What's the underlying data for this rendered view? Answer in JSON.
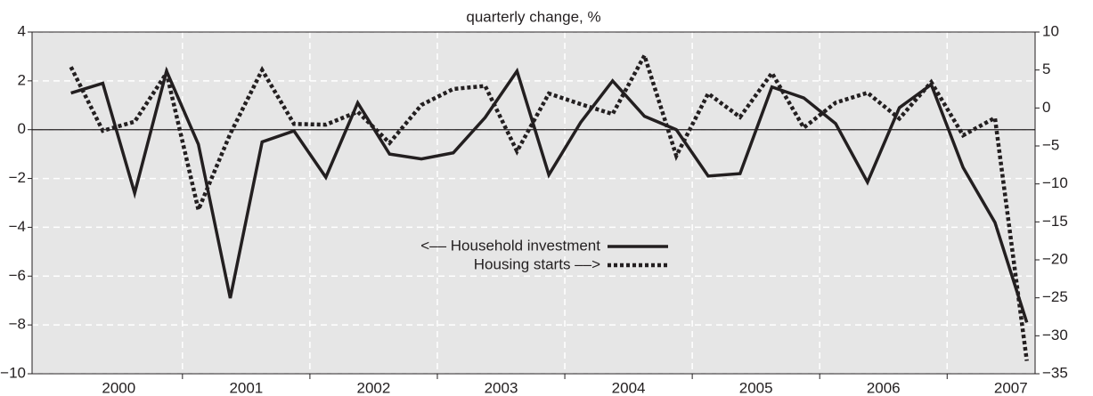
{
  "chart_data": {
    "type": "line",
    "title": "quarterly change, %",
    "x": [
      2000.125,
      2000.375,
      2000.625,
      2000.875,
      2001.125,
      2001.375,
      2001.625,
      2001.875,
      2002.125,
      2002.375,
      2002.625,
      2002.875,
      2003.125,
      2003.375,
      2003.625,
      2003.875,
      2004.125,
      2004.375,
      2004.625,
      2004.875,
      2005.125,
      2005.375,
      2005.625,
      2005.875,
      2006.125,
      2006.375,
      2006.625,
      2006.875,
      2007.125,
      2007.375,
      2007.625
    ],
    "series": [
      {
        "name": "<–– Household investment",
        "color": "#231f20",
        "style": "solid",
        "axis": "y",
        "values": [
          1.5,
          1.9,
          -2.6,
          2.4,
          -0.6,
          -6.9,
          -0.5,
          -0.05,
          -1.95,
          1.1,
          -1.0,
          -1.2,
          -0.95,
          0.5,
          2.4,
          -1.85,
          0.3,
          2.0,
          0.55,
          0.0,
          -1.9,
          -1.8,
          1.75,
          1.3,
          0.25,
          -2.15,
          0.9,
          1.85,
          -1.55,
          -3.8,
          -7.9
        ]
      },
      {
        "name": "Housing starts ––>",
        "color": "#231f20",
        "style": "dotted",
        "axis": "y2",
        "values": [
          5.4,
          -3.0,
          -1.8,
          4.6,
          -13.4,
          -3.4,
          5.0,
          -2.1,
          -2.2,
          -0.5,
          -4.6,
          0.4,
          2.5,
          2.9,
          -5.7,
          1.9,
          0.5,
          -0.8,
          6.9,
          -6.3,
          1.9,
          -1.2,
          4.6,
          -2.6,
          0.7,
          2.0,
          -1.4,
          3.4,
          -3.6,
          -1.3,
          -33.3
        ]
      }
    ],
    "xlim": [
      1999.82,
      2007.69
    ],
    "xticks": [
      {
        "value": 2000.5,
        "label": "2000"
      },
      {
        "value": 2001.5,
        "label": "2001"
      },
      {
        "value": 2002.5,
        "label": "2002"
      },
      {
        "value": 2003.5,
        "label": "2003"
      },
      {
        "value": 2004.5,
        "label": "2004"
      },
      {
        "value": 2005.5,
        "label": "2005"
      },
      {
        "value": 2006.5,
        "label": "2006"
      },
      {
        "value": 2007.5,
        "label": "2007"
      }
    ],
    "xgrid": [
      2001,
      2002,
      2003,
      2004,
      2005,
      2006,
      2007
    ],
    "ylim": [
      -10,
      4
    ],
    "yticks": [
      {
        "value": -10,
        "label": "−10"
      },
      {
        "value": -8,
        "label": "−8"
      },
      {
        "value": -6,
        "label": "−6"
      },
      {
        "value": -4,
        "label": "−4"
      },
      {
        "value": -2,
        "label": "−2"
      },
      0,
      2,
      4
    ],
    "y2lim": [
      -35,
      10
    ],
    "y2ticks": [
      {
        "value": -35,
        "label": "−35"
      },
      {
        "value": -30,
        "label": "−30"
      },
      {
        "value": -25,
        "label": "−25"
      },
      {
        "value": -20,
        "label": "−20"
      },
      {
        "value": -15,
        "label": "−15"
      },
      {
        "value": -10,
        "label": "−10"
      },
      {
        "value": -5,
        "label": "−5"
      },
      0,
      5,
      10
    ],
    "grid": true,
    "background": "#e6e6e6",
    "zero_line": true
  }
}
